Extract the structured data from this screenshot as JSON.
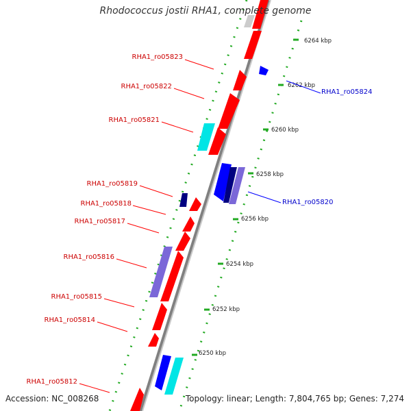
{
  "title": "Rhodococcus jostii RHA1, complete genome",
  "footer": {
    "accession": "Accession: NC_008268",
    "summary": "Topology: linear; Length: 7,804,765 bp; Genes: 7,274"
  },
  "colors": {
    "forward_gene": "#ff0000",
    "reverse_gene": "#0000ff",
    "label_forward": "#cc0000",
    "label_reverse": "#0000cc",
    "backbone": "#808080",
    "ruler_dots": "#22aa22"
  },
  "kbp_ticks": [
    "6250 kbp",
    "6252 kbp",
    "6254 kbp",
    "6256 kbp",
    "6258 kbp",
    "6260 kbp",
    "6262 kbp",
    "6264 kbp"
  ],
  "gene_labels": [
    {
      "text": "RHA1_ro05823",
      "strand": "left"
    },
    {
      "text": "RHA1_ro05822",
      "strand": "left"
    },
    {
      "text": "RHA1_ro05821",
      "strand": "left"
    },
    {
      "text": "RHA1_ro05819",
      "strand": "left"
    },
    {
      "text": "RHA1_ro05818",
      "strand": "left"
    },
    {
      "text": "RHA1_ro05817",
      "strand": "left"
    },
    {
      "text": "RHA1_ro05816",
      "strand": "left"
    },
    {
      "text": "RHA1_ro05815",
      "strand": "left"
    },
    {
      "text": "RHA1_ro05814",
      "strand": "left"
    },
    {
      "text": "RHA1_ro05812",
      "strand": "left"
    },
    {
      "text": "RHA1_ro05824",
      "strand": "right"
    },
    {
      "text": "RHA1_ro05820",
      "strand": "right"
    }
  ]
}
